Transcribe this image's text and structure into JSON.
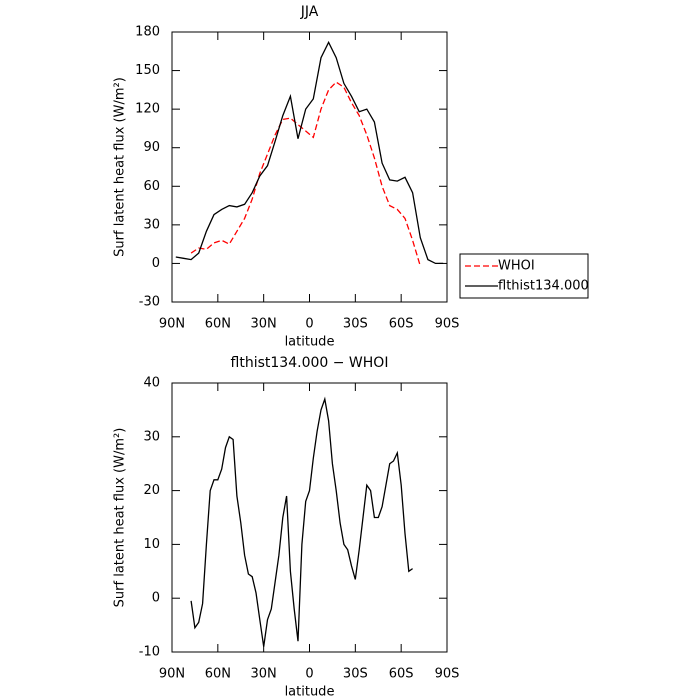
{
  "chart_data": [
    {
      "type": "line",
      "title": "JJA",
      "xlabel": "latitude",
      "ylabel": "Surf latent heat flux (W/m²)",
      "x": [
        87.5,
        82.5,
        77.5,
        72.5,
        67.5,
        62.5,
        57.5,
        52.5,
        47.5,
        42.5,
        37.5,
        32.5,
        27.5,
        22.5,
        17.5,
        12.5,
        7.5,
        2.5,
        -2.5,
        -7.5,
        -12.5,
        -17.5,
        -22.5,
        -27.5,
        -32.5,
        -37.5,
        -42.5,
        -47.5,
        -52.5,
        -57.5,
        -62.5,
        -67.5,
        -72.5,
        -77.5,
        -82.5,
        -87.5
      ],
      "series": [
        {
          "name": "WHOI",
          "color": "#ff0000",
          "dashed": true,
          "values": [
            null,
            null,
            8,
            12,
            11,
            16,
            18,
            15,
            25,
            35,
            50,
            70,
            85,
            100,
            112,
            113,
            108,
            103,
            98,
            120,
            135,
            141,
            137,
            125,
            115,
            100,
            82,
            60,
            45,
            42,
            35,
            18,
            -2,
            null,
            null,
            null
          ]
        },
        {
          "name": "flthist134.000",
          "color": "#000000",
          "dashed": false,
          "values": [
            5,
            4,
            3,
            8,
            25,
            38,
            42,
            45,
            44,
            46,
            55,
            68,
            76,
            95,
            115,
            130,
            97,
            120,
            128,
            160,
            172,
            160,
            140,
            130,
            118,
            120,
            110,
            78,
            65,
            64,
            67,
            55,
            20,
            3,
            0,
            0
          ]
        }
      ],
      "xlim": [
        90,
        -90
      ],
      "xticks": [
        {
          "value": 90,
          "label": "90N"
        },
        {
          "value": 60,
          "label": "60N"
        },
        {
          "value": 30,
          "label": "30N"
        },
        0,
        {
          "value": -30,
          "label": "30S"
        },
        {
          "value": -60,
          "label": "60S"
        },
        {
          "value": -90,
          "label": "90S"
        }
      ],
      "ylim": [
        -30,
        180
      ],
      "yticks": [
        -30,
        0,
        30,
        60,
        90,
        120,
        150,
        180
      ]
    },
    {
      "type": "line",
      "title": "flthist134.000 − WHOI",
      "xlabel": "latitude",
      "ylabel": "Surf latent heat flux (W/m²)",
      "x": [
        77.5,
        75,
        72.5,
        70,
        67.5,
        65,
        62.5,
        60,
        57.5,
        55,
        52.5,
        50,
        47.5,
        45,
        42.5,
        40,
        37.5,
        35,
        32.5,
        30,
        27.5,
        25,
        22.5,
        20,
        17.5,
        15,
        12.5,
        10,
        7.5,
        5,
        2.5,
        0,
        -2.5,
        -5,
        -7.5,
        -10,
        -12.5,
        -15,
        -17.5,
        -20,
        -22.5,
        -25,
        -27.5,
        -30,
        -32.5,
        -35,
        -37.5,
        -40,
        -42.5,
        -45,
        -47.5,
        -50,
        -52.5,
        -55,
        -57.5,
        -60,
        -62.5,
        -65,
        -67.5
      ],
      "values": [
        -0.5,
        -5.5,
        -4.5,
        -1,
        10,
        20,
        22,
        22,
        24,
        28,
        30,
        29.5,
        19,
        14,
        8,
        4.5,
        4,
        1,
        -4,
        -9,
        -4,
        -2,
        3,
        8,
        15,
        19,
        5,
        -2,
        -8,
        10,
        18,
        20,
        26,
        31,
        35,
        37,
        33,
        25,
        20,
        14,
        10,
        9,
        6,
        3.5,
        9,
        15,
        21,
        20,
        15,
        15,
        17,
        21,
        25,
        25.5,
        27,
        21,
        12,
        5,
        5.5
      ],
      "color": "#000000",
      "xlim": [
        90,
        -90
      ],
      "xticks": [
        {
          "value": 90,
          "label": "90N"
        },
        {
          "value": 60,
          "label": "60N"
        },
        {
          "value": 30,
          "label": "30N"
        },
        0,
        {
          "value": -30,
          "label": "30S"
        },
        {
          "value": -60,
          "label": "60S"
        },
        {
          "value": -90,
          "label": "90S"
        }
      ],
      "ylim": [
        -10,
        40
      ],
      "yticks": [
        -10,
        0,
        10,
        20,
        30,
        40
      ]
    }
  ]
}
